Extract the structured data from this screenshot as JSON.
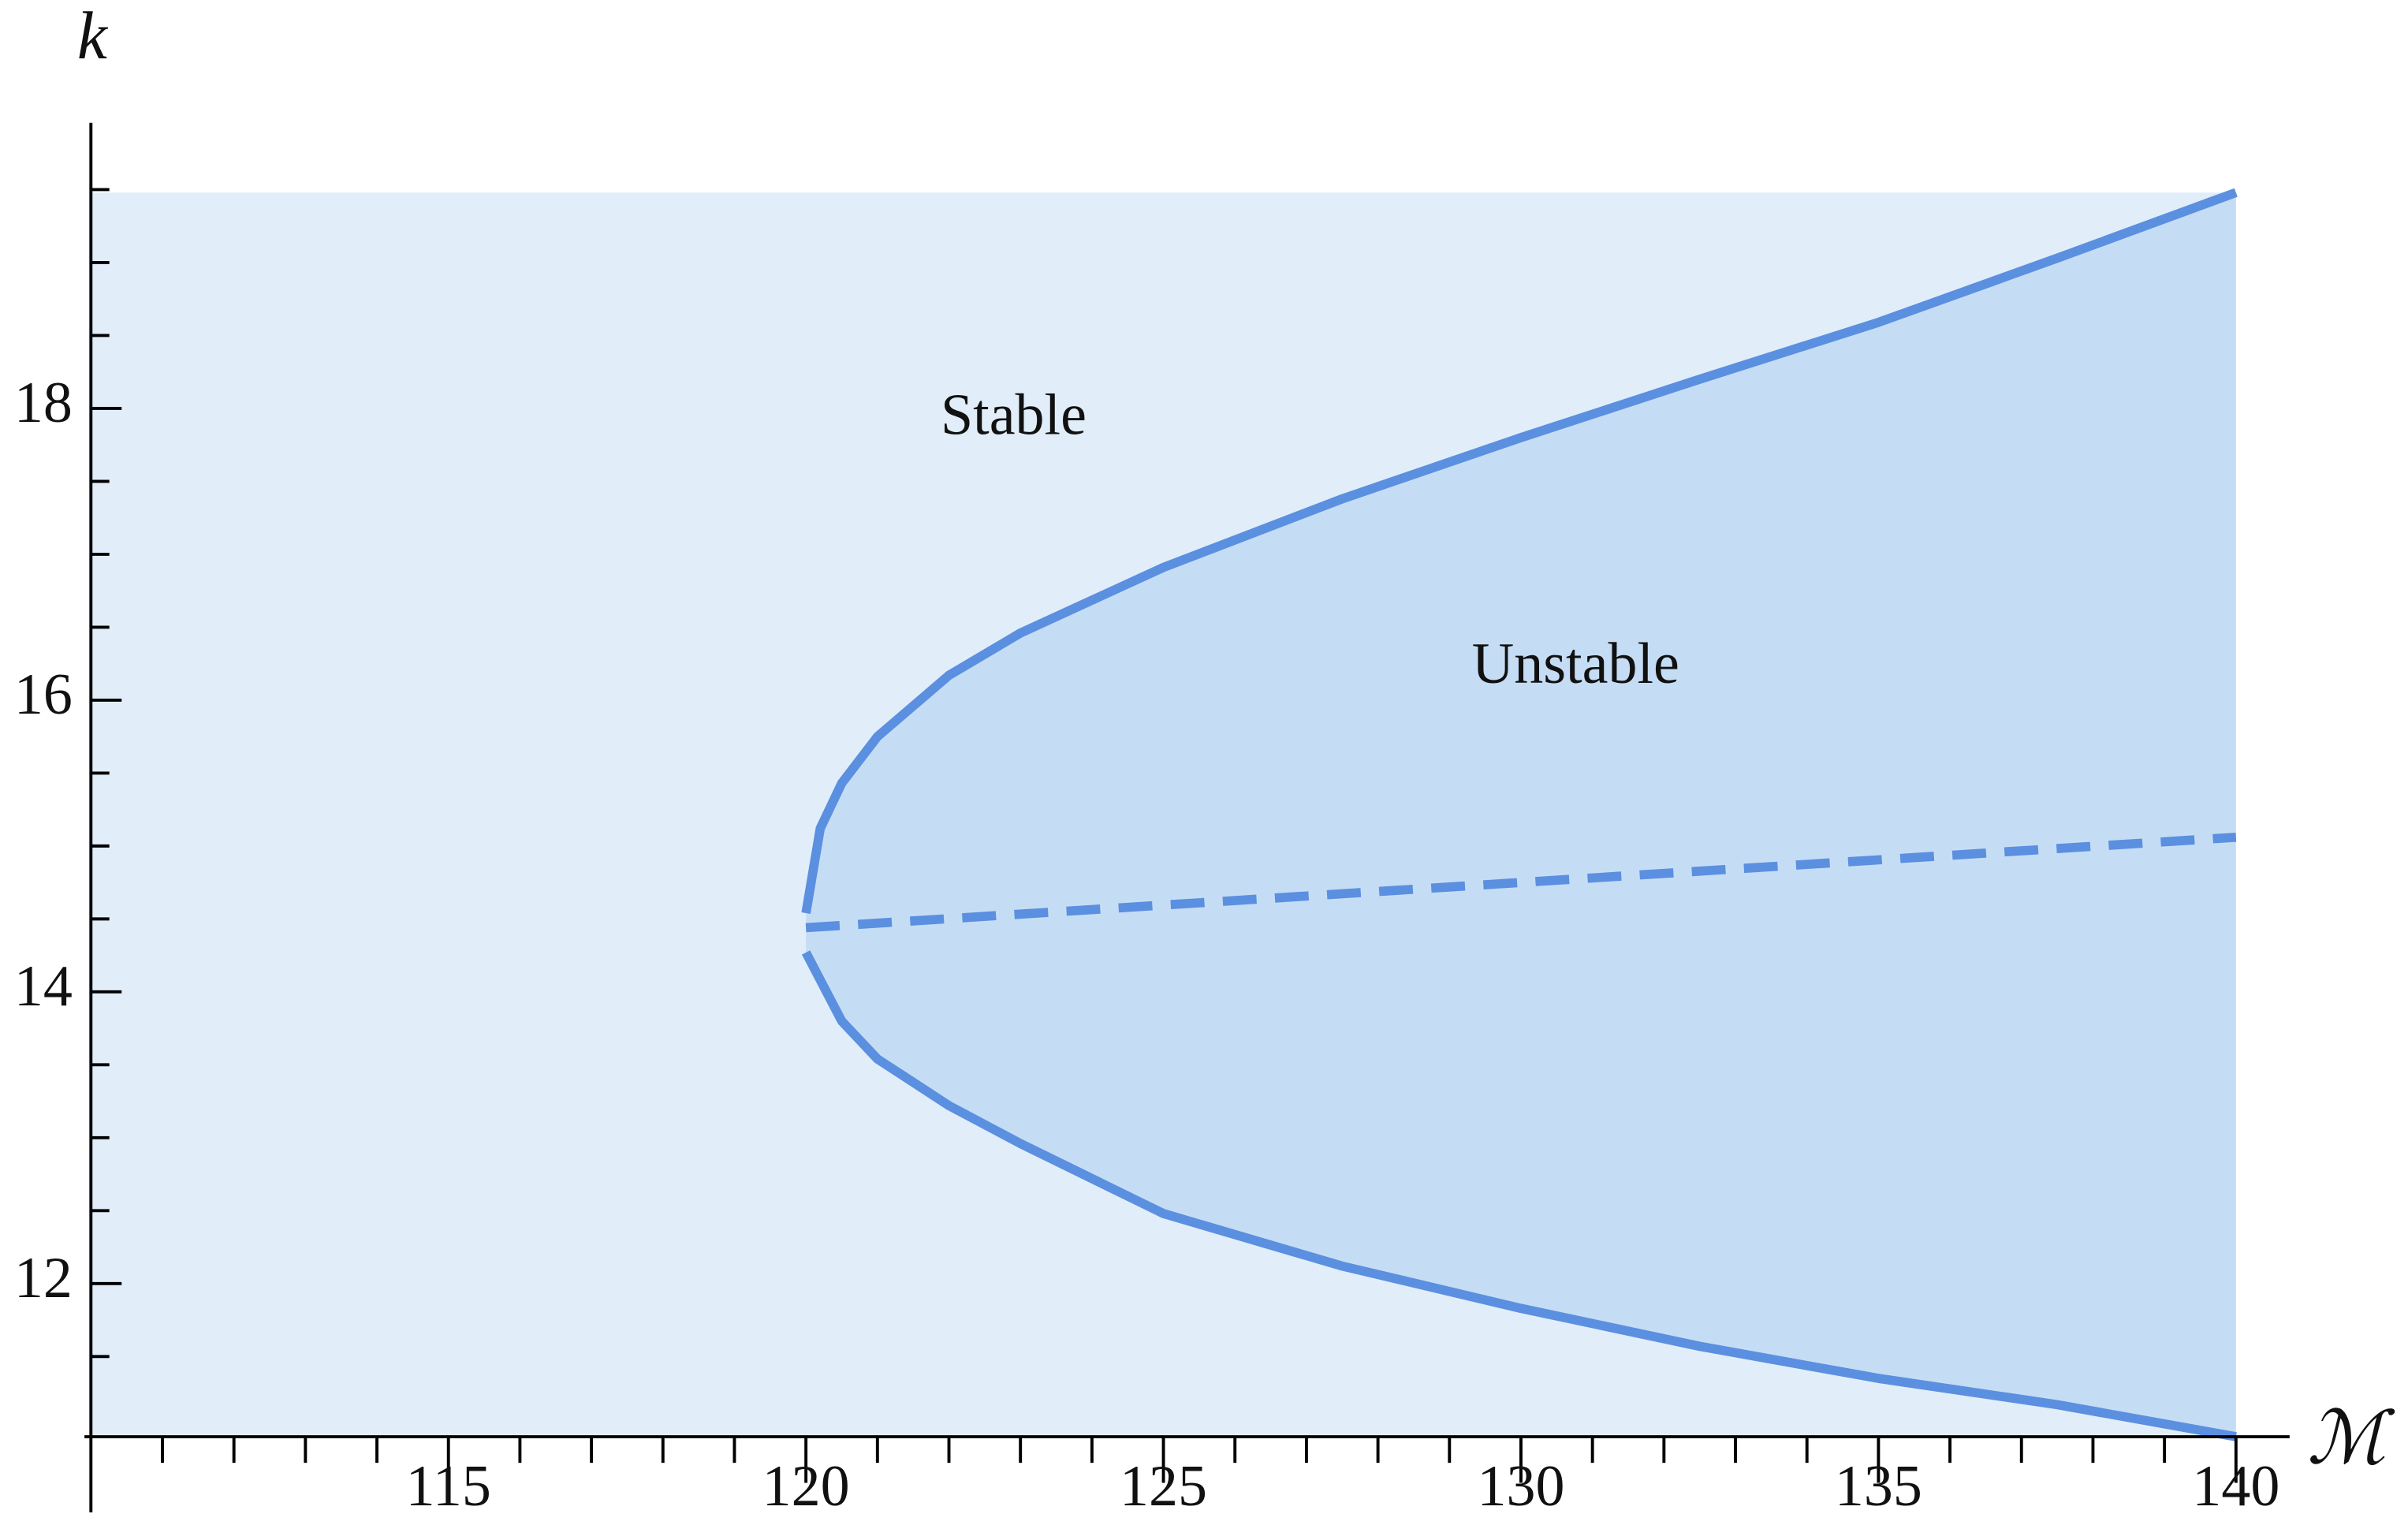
{
  "chart_data": {
    "type": "region",
    "x_label": "ℳ",
    "y_label": "k",
    "annotations": [
      "Stable",
      "Unstable"
    ],
    "xlim": [
      110,
      140.75
    ],
    "ylim": [
      10.95,
      19.8
    ],
    "xticks": [
      115,
      120,
      125,
      130,
      135,
      140
    ],
    "yticks": [
      12,
      14,
      16,
      18
    ],
    "xminorticks": [
      111,
      112,
      113,
      114,
      116,
      117,
      118,
      119,
      121,
      122,
      123,
      124,
      126,
      127,
      128,
      129,
      131,
      132,
      133,
      134,
      136,
      137,
      138,
      139
    ],
    "yminorticks": [
      11.5,
      12.5,
      13,
      13.5,
      14.5,
      15,
      15.5,
      16.5,
      17,
      17.5,
      18.5,
      19,
      19.5
    ],
    "background_region": {
      "x": [
        110,
        140
      ],
      "y": [
        10.95,
        19.48
      ],
      "color": "#e1eef9"
    },
    "unstable_color": "#c5ddf4",
    "series": [
      {
        "color": "#5b8fe0",
        "dash": false,
        "x": [
          120,
          120.2,
          120.5,
          121,
          122,
          123,
          125,
          127.5,
          130,
          132.5,
          135,
          137.5,
          140
        ],
        "values": [
          14.54,
          15.12,
          15.43,
          15.75,
          16.17,
          16.46,
          16.91,
          17.38,
          17.8,
          18.2,
          18.59,
          19.03,
          19.48
        ]
      },
      {
        "color": "#5b8fe0",
        "dash": false,
        "x": [
          120,
          120.5,
          121,
          122,
          123,
          125,
          127.5,
          130,
          132.5,
          135,
          137.5,
          140
        ],
        "values": [
          14.27,
          13.8,
          13.54,
          13.22,
          12.96,
          12.48,
          12.12,
          11.83,
          11.57,
          11.35,
          11.17,
          10.95
        ]
      },
      {
        "color": "#5b8fe0",
        "dash": true,
        "x": [
          120,
          140
        ],
        "values": [
          14.44,
          15.06
        ]
      }
    ]
  }
}
